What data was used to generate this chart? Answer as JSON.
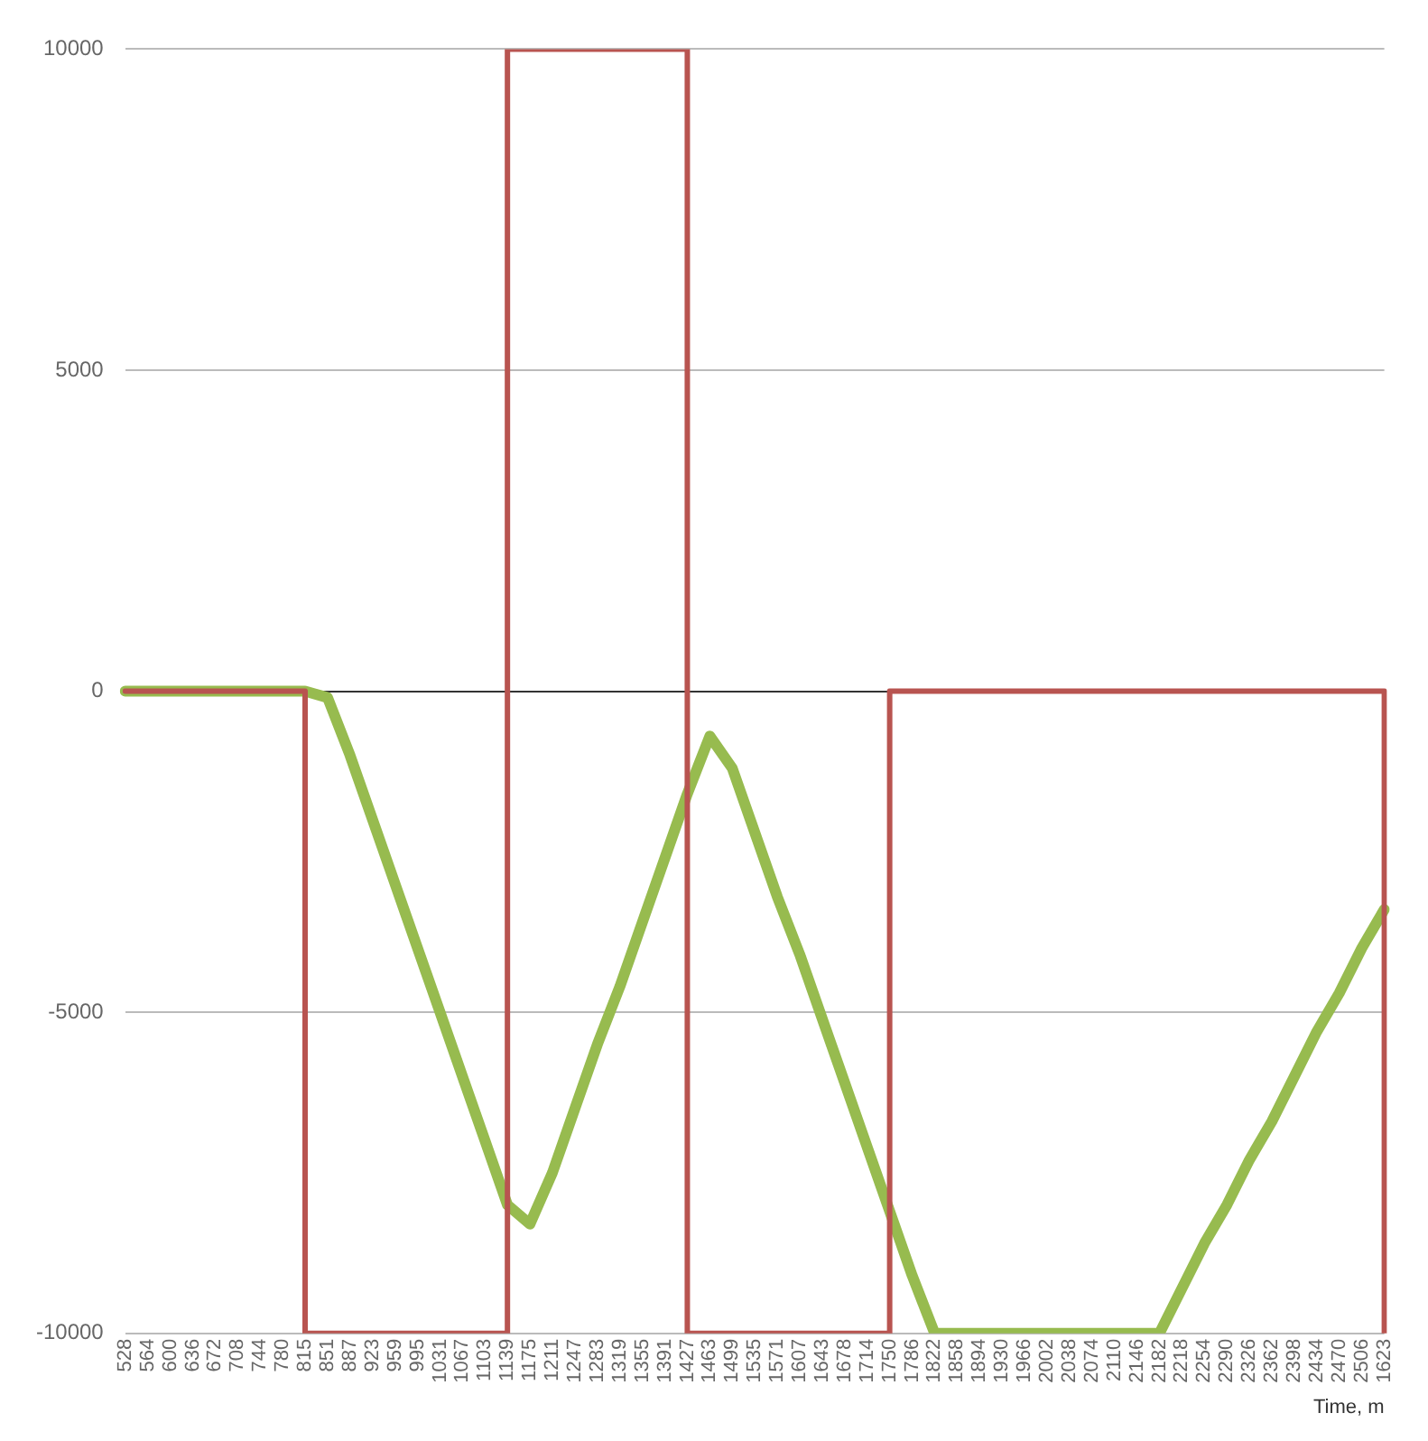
{
  "chart_data": {
    "type": "line",
    "xlabel": "Time, m",
    "categories": [
      "528",
      "564",
      "600",
      "636",
      "672",
      "708",
      "744",
      "780",
      "815",
      "851",
      "887",
      "923",
      "959",
      "995",
      "1031",
      "1067",
      "1103",
      "1139",
      "1175",
      "1211",
      "1247",
      "1283",
      "1319",
      "1355",
      "1391",
      "1427",
      "1463",
      "1499",
      "1535",
      "1571",
      "1607",
      "1643",
      "1678",
      "1714",
      "1750",
      "1786",
      "1822",
      "1858",
      "1894",
      "1930",
      "1966",
      "2002",
      "2038",
      "2074",
      "2110",
      "2146",
      "2182",
      "2218",
      "2254",
      "2290",
      "2326",
      "2362",
      "2398",
      "2434",
      "2470",
      "2506",
      "1623"
    ],
    "series": [
      {
        "type": "step",
        "color": "#b85450",
        "values": [
          0,
          0,
          0,
          0,
          0,
          0,
          0,
          0,
          -10000,
          -10000,
          -10000,
          -10000,
          -10000,
          -10000,
          -10000,
          -10000,
          -10000,
          10000,
          10000,
          10000,
          10000,
          10000,
          10000,
          10000,
          10000,
          -10000,
          -10000,
          -10000,
          -10000,
          -10000,
          -10000,
          -10000,
          -10000,
          -10000,
          0,
          0,
          0,
          0,
          0,
          0,
          0,
          0,
          0,
          0,
          0,
          0,
          0,
          0,
          0,
          0,
          0,
          0,
          0,
          0,
          0,
          0,
          -10000
        ]
      },
      {
        "type": "line",
        "color": "#97bb4f",
        "values": [
          0,
          0,
          0,
          0,
          0,
          0,
          0,
          0,
          0,
          -100,
          -1000,
          -2000,
          -3000,
          -4000,
          -5000,
          -6000,
          -7000,
          -8000,
          -8300,
          -7500,
          -6500,
          -5500,
          -4600,
          -3600,
          -2600,
          -1600,
          -700,
          -1200,
          -2200,
          -3200,
          -4100,
          -5100,
          -6100,
          -7100,
          -8100,
          -9100,
          -10000,
          -10000,
          -10000,
          -10000,
          -10000,
          -10000,
          -10000,
          -10000,
          -10000,
          -10000,
          -10000,
          -9300,
          -8600,
          -8000,
          -7300,
          -6700,
          -6000,
          -5300,
          -4700,
          -4000,
          -3400
        ]
      }
    ],
    "ylim": [
      -10000,
      10000
    ],
    "yticks": [
      -10000,
      -5000,
      0,
      5000,
      10000
    ],
    "grid": "y",
    "marker": "none",
    "legend": false
  }
}
